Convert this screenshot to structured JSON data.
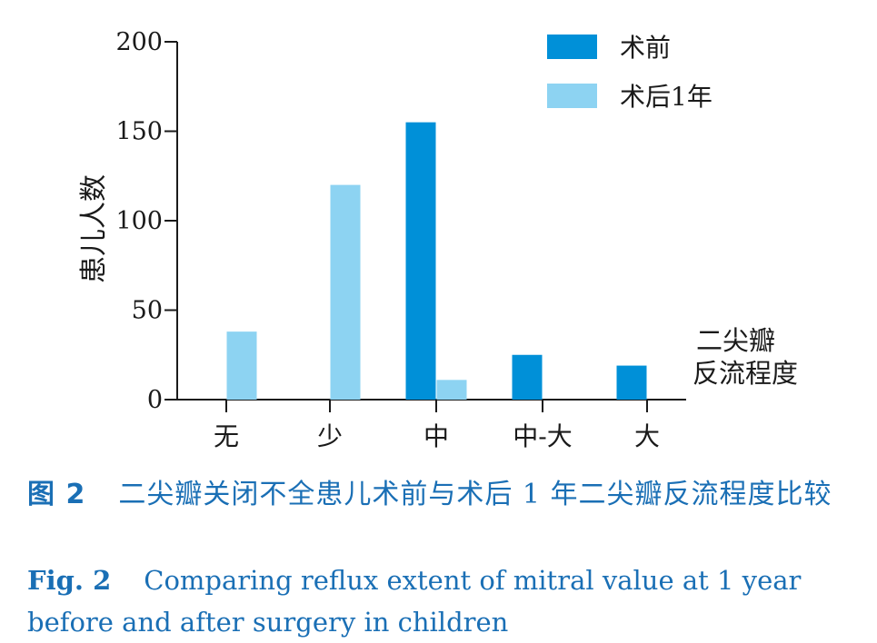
{
  "chart_data": {
    "type": "bar",
    "categories": [
      "无",
      "少",
      "中",
      "中-大",
      "大"
    ],
    "series": [
      {
        "name": "术前",
        "values": [
          0,
          0,
          155,
          25,
          19
        ],
        "color": "#0090d8"
      },
      {
        "name": "术后1年",
        "values": [
          38,
          120,
          11,
          0,
          0
        ],
        "color": "#8dd3f2"
      }
    ],
    "ylabel": "患儿人数",
    "xlabel_line1": "二尖瓣",
    "xlabel_line2": "反流程度",
    "ylim": [
      0,
      200
    ],
    "yticks": [
      0,
      50,
      100,
      150,
      200
    ],
    "legend_position": "top-right",
    "grid": false
  },
  "caption_cn": {
    "label": "图 2",
    "text": "二尖瓣关闭不全患儿术前与术后 1 年二尖瓣反流程度比较"
  },
  "caption_en": {
    "label": "Fig. 2",
    "text": "Comparing reflux extent of mitral value at 1 year before and after surgery in children"
  }
}
